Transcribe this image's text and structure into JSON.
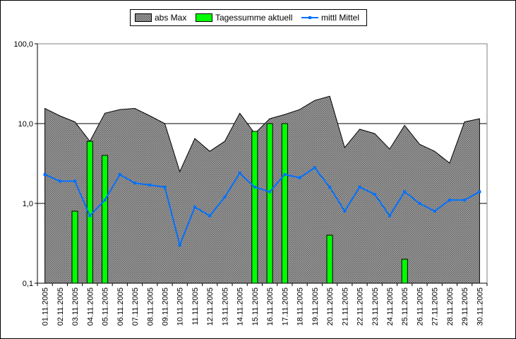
{
  "chart_data": {
    "type": "bar",
    "categories": [
      "01.11.2005",
      "02.11.2005",
      "03.11.2005",
      "04.11.2005",
      "05.11.2005",
      "06.11.2005",
      "07.11.2005",
      "08.11.2005",
      "09.11.2005",
      "10.11.2005",
      "11.11.2005",
      "12.11.2005",
      "13.11.2005",
      "14.11.2005",
      "15.11.2005",
      "16.11.2005",
      "17.11.2005",
      "18.11.2005",
      "19.11.2005",
      "20.11.2005",
      "21.11.2005",
      "22.11.2005",
      "23.11.2005",
      "24.11.2005",
      "25.11.2005",
      "26.11.2005",
      "27.11.2005",
      "28.11.2005",
      "29.11.2005",
      "30.11.2005"
    ],
    "series": [
      {
        "name": "abs Max",
        "kind": "area",
        "color": "#808080",
        "values": [
          15.5,
          12.5,
          10.5,
          6.0,
          13.5,
          15.0,
          15.5,
          12.5,
          10.0,
          2.5,
          6.5,
          4.5,
          6.0,
          13.5,
          7.5,
          11.5,
          13.0,
          15.0,
          19.5,
          22.0,
          5.0,
          8.5,
          7.5,
          4.8,
          9.5,
          5.5,
          4.5,
          3.2,
          10.5,
          11.5
        ]
      },
      {
        "name": "Tagessumme aktuell",
        "kind": "bar",
        "color": "#00ff00",
        "values": [
          null,
          null,
          0.8,
          6.0,
          4.0,
          null,
          null,
          null,
          null,
          null,
          null,
          null,
          null,
          null,
          8.0,
          10.0,
          10.0,
          null,
          null,
          0.4,
          null,
          null,
          null,
          null,
          0.2,
          null,
          null,
          null,
          null,
          null
        ]
      },
      {
        "name": "mittl Mittel",
        "kind": "line",
        "color": "#0070ff",
        "values": [
          2.3,
          1.9,
          1.9,
          0.7,
          1.1,
          2.3,
          1.8,
          1.7,
          1.6,
          0.3,
          0.9,
          0.7,
          1.2,
          2.4,
          1.6,
          1.4,
          2.3,
          2.1,
          2.8,
          1.6,
          0.8,
          1.6,
          1.3,
          0.7,
          1.4,
          1.0,
          0.8,
          1.1,
          1.1,
          1.4
        ]
      }
    ],
    "y_scale": "log",
    "ylim": [
      0.1,
      100
    ],
    "yticks": [
      0.1,
      1,
      10,
      100
    ],
    "ytick_labels": [
      "0,1",
      "1,0",
      "10,0",
      "100,0"
    ],
    "grid": "horizontal",
    "legend_position": "top",
    "plot_background": "#ffffff"
  }
}
